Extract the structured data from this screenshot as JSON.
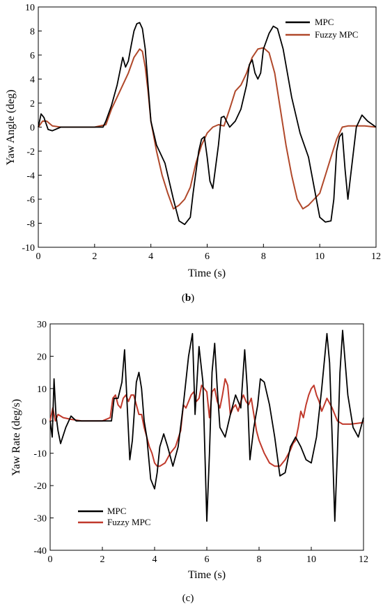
{
  "captions": {
    "b_open": "(",
    "b_letter": "b",
    "b_close": ")",
    "c_full": "(c)"
  },
  "chart_data": [
    {
      "type": "line",
      "xlabel": "Time (s)",
      "ylabel": "Yaw Angle (deg)",
      "xlim": [
        0,
        12
      ],
      "ylim": [
        -10,
        10
      ],
      "xticks": [
        0,
        2,
        4,
        6,
        8,
        10,
        12
      ],
      "yticks": [
        -10,
        -8,
        -6,
        -4,
        -2,
        0,
        2,
        4,
        6,
        8,
        10
      ],
      "grid": false,
      "legend_position": "top-right",
      "series": [
        {
          "name": "MPC",
          "color": "#000000",
          "x": [
            0,
            0.1,
            0.2,
            0.35,
            0.5,
            0.8,
            1.0,
            1.5,
            2.0,
            2.3,
            2.4,
            2.6,
            2.8,
            3.0,
            3.1,
            3.2,
            3.3,
            3.4,
            3.5,
            3.6,
            3.7,
            3.8,
            3.9,
            4.0,
            4.2,
            4.5,
            4.8,
            5.0,
            5.2,
            5.4,
            5.5,
            5.7,
            5.8,
            5.9,
            6.0,
            6.1,
            6.2,
            6.4,
            6.5,
            6.6,
            6.8,
            7.0,
            7.2,
            7.4,
            7.5,
            7.6,
            7.7,
            7.8,
            7.9,
            8.0,
            8.2,
            8.35,
            8.5,
            8.7,
            9.0,
            9.3,
            9.6,
            9.8,
            10.0,
            10.2,
            10.4,
            10.5,
            10.6,
            10.7,
            10.8,
            10.9,
            11.0,
            11.1,
            11.3,
            11.5,
            11.7,
            12.0
          ],
          "y": [
            0,
            1.1,
            0.8,
            -0.2,
            -0.3,
            0,
            0,
            0,
            0,
            0,
            0.5,
            1.8,
            3.5,
            5.8,
            5.0,
            5.5,
            6.8,
            8.0,
            8.6,
            8.7,
            8.2,
            6.5,
            3.5,
            0.5,
            -1.5,
            -3.0,
            -6.0,
            -7.8,
            -8.1,
            -7.5,
            -5.5,
            -2.0,
            -1.0,
            -0.8,
            -2.5,
            -4.5,
            -5.1,
            -1.5,
            0.8,
            0.9,
            0,
            0.5,
            1.5,
            3.5,
            5.2,
            5.6,
            4.5,
            4.0,
            4.5,
            6.5,
            7.8,
            8.4,
            8.2,
            6.5,
            2.5,
            -0.5,
            -2.5,
            -5.0,
            -7.5,
            -7.9,
            -7.8,
            -6.0,
            -2.0,
            -0.8,
            -0.5,
            -3.5,
            -6.0,
            -4.0,
            0,
            1.0,
            0.5,
            0
          ]
        },
        {
          "name": "Fuzzy MPC",
          "color": "#b0482a",
          "x": [
            0,
            0.15,
            0.3,
            0.5,
            0.8,
            1.2,
            2.0,
            2.4,
            2.6,
            2.8,
            3.0,
            3.2,
            3.4,
            3.6,
            3.7,
            3.8,
            3.9,
            4.0,
            4.2,
            4.4,
            4.6,
            4.8,
            5.0,
            5.2,
            5.4,
            5.6,
            5.8,
            6.0,
            6.2,
            6.4,
            6.6,
            6.8,
            7.0,
            7.2,
            7.4,
            7.6,
            7.8,
            8.0,
            8.2,
            8.4,
            8.6,
            8.8,
            9.0,
            9.2,
            9.4,
            9.6,
            9.8,
            10.0,
            10.2,
            10.4,
            10.6,
            10.8,
            11.0,
            11.2,
            11.4,
            11.6,
            12.0
          ],
          "y": [
            0,
            0.5,
            0.5,
            0.1,
            0,
            0,
            0,
            0.2,
            1.5,
            2.5,
            3.5,
            4.5,
            5.8,
            6.5,
            6.3,
            5.0,
            3.0,
            0.5,
            -2.0,
            -4.0,
            -5.5,
            -6.8,
            -6.5,
            -6.0,
            -5.0,
            -3.0,
            -1.5,
            -0.5,
            0,
            0.2,
            0.1,
            1.5,
            3.0,
            3.5,
            4.5,
            5.8,
            6.5,
            6.6,
            6.2,
            4.5,
            1.5,
            -1.5,
            -4.0,
            -6.0,
            -6.8,
            -6.5,
            -6.0,
            -5.5,
            -4.0,
            -2.5,
            -1.0,
            0,
            0.1,
            0.1,
            0.1,
            0.1,
            0
          ]
        }
      ]
    },
    {
      "type": "line",
      "xlabel": "Time (s)",
      "ylabel": "Yaw Rate (deg/s)",
      "xlim": [
        0,
        12
      ],
      "ylim": [
        -40,
        30
      ],
      "xticks": [
        0,
        2,
        4,
        6,
        8,
        10,
        12
      ],
      "yticks": [
        -40,
        -30,
        -20,
        -10,
        0,
        10,
        20,
        30
      ],
      "grid": false,
      "legend_position": "bottom-left",
      "series": [
        {
          "name": "MPC",
          "color": "#000000",
          "x": [
            0,
            0.08,
            0.15,
            0.22,
            0.3,
            0.4,
            0.6,
            0.8,
            1.0,
            1.5,
            2.0,
            2.35,
            2.45,
            2.6,
            2.75,
            2.85,
            2.95,
            3.05,
            3.15,
            3.3,
            3.4,
            3.5,
            3.6,
            3.7,
            3.85,
            4.0,
            4.1,
            4.2,
            4.35,
            4.5,
            4.7,
            4.9,
            5.1,
            5.3,
            5.45,
            5.55,
            5.7,
            5.85,
            6.0,
            6.1,
            6.2,
            6.3,
            6.4,
            6.5,
            6.7,
            6.9,
            7.1,
            7.3,
            7.45,
            7.55,
            7.65,
            7.8,
            7.95,
            8.05,
            8.2,
            8.4,
            8.6,
            8.8,
            9.0,
            9.2,
            9.4,
            9.6,
            9.8,
            10.0,
            10.2,
            10.4,
            10.6,
            10.7,
            10.8,
            10.9,
            11.0,
            11.1,
            11.2,
            11.4,
            11.6,
            11.8,
            12.0
          ],
          "y": [
            0,
            -5,
            13,
            2,
            -3,
            -7,
            -2,
            1.5,
            0,
            0,
            0,
            0,
            7,
            7,
            12,
            22,
            5,
            -12,
            -6,
            12,
            15,
            10,
            0,
            -5,
            -18,
            -21,
            -16,
            -8,
            -4,
            -8,
            -14,
            -8,
            5,
            20,
            27,
            2,
            23,
            12,
            -31,
            -10,
            15,
            24,
            10,
            -2,
            -5,
            2,
            8,
            4,
            22,
            10,
            -12,
            -2,
            5,
            13,
            12,
            5,
            -5,
            -17,
            -16,
            -8,
            -5,
            -8,
            -12,
            -13,
            -5,
            10,
            27,
            18,
            -5,
            -31,
            -10,
            15,
            28,
            8,
            -2,
            -5,
            1
          ]
        },
        {
          "name": "Fuzzy MPC",
          "color": "#c0392b",
          "x": [
            0,
            0.1,
            0.2,
            0.3,
            0.5,
            0.8,
            1.2,
            2.0,
            2.3,
            2.4,
            2.5,
            2.6,
            2.7,
            2.8,
            2.9,
            3.0,
            3.1,
            3.2,
            3.3,
            3.4,
            3.5,
            3.6,
            3.7,
            3.8,
            3.9,
            4.0,
            4.1,
            4.2,
            4.4,
            4.6,
            4.8,
            5.0,
            5.1,
            5.2,
            5.3,
            5.4,
            5.5,
            5.6,
            5.7,
            5.8,
            5.9,
            6.0,
            6.1,
            6.2,
            6.3,
            6.4,
            6.5,
            6.6,
            6.7,
            6.8,
            6.9,
            7.0,
            7.1,
            7.2,
            7.3,
            7.4,
            7.5,
            7.6,
            7.7,
            7.8,
            7.9,
            8.0,
            8.1,
            8.2,
            8.4,
            8.6,
            8.8,
            9.0,
            9.2,
            9.3,
            9.4,
            9.5,
            9.6,
            9.7,
            9.8,
            9.9,
            10.0,
            10.1,
            10.2,
            10.3,
            10.4,
            10.5,
            10.6,
            10.8,
            11.0,
            11.2,
            11.5,
            12.0
          ],
          "y": [
            0,
            4,
            0,
            2,
            1,
            0.5,
            0,
            0,
            1,
            7,
            8,
            5,
            4,
            7,
            8,
            6,
            8,
            8,
            5,
            2,
            2,
            -2,
            -5,
            -8,
            -10,
            -13,
            -14,
            -14,
            -13,
            -10,
            -8,
            -3,
            5,
            4,
            6,
            8,
            9,
            6,
            7,
            11,
            10,
            9,
            1,
            9,
            10,
            6,
            4,
            8,
            13,
            11,
            2,
            4,
            5,
            3,
            6,
            8,
            6,
            5,
            7,
            2,
            -3,
            -6,
            -8,
            -10,
            -13,
            -14,
            -14,
            -12,
            -9,
            -7,
            -6,
            -2,
            3,
            1,
            5,
            8,
            10,
            11,
            8,
            6,
            3,
            5,
            7,
            4,
            0,
            -1,
            -1,
            -0.5
          ]
        }
      ]
    }
  ]
}
